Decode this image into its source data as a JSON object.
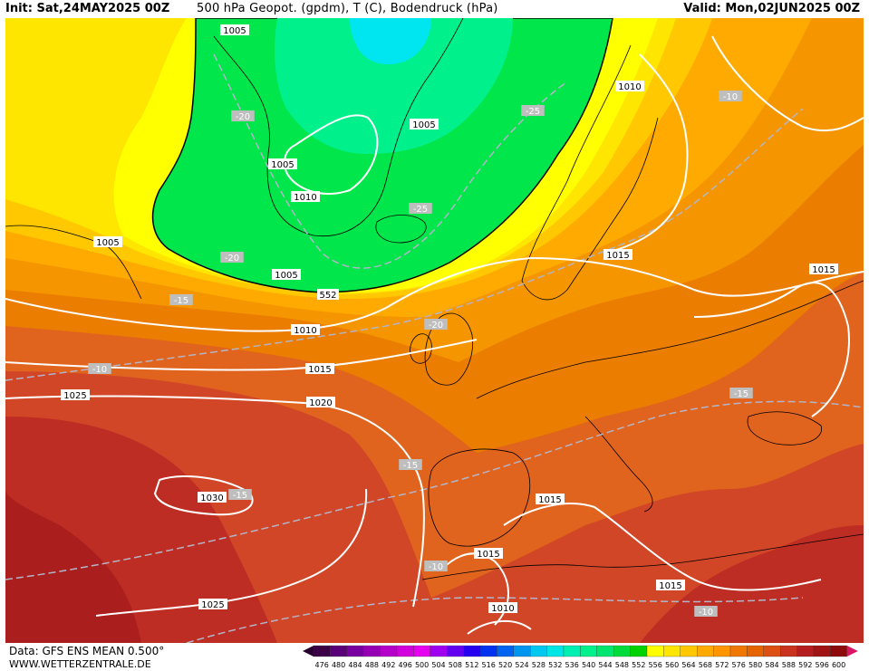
{
  "header": {
    "init": "Init: Sat,24MAY2025 00Z",
    "title": "500 hPa Geopot. (gpdm), T (C), Bodendruck (hPa)",
    "valid": "Valid: Mon,02JUN2025 00Z"
  },
  "footer": {
    "data": "Data: GFS ENS MEAN 0.500°",
    "site": "WWW.WETTERZENTRALE.DE"
  },
  "legend": {
    "values": [
      "476",
      "480",
      "484",
      "488",
      "492",
      "496",
      "500",
      "504",
      "508",
      "512",
      "516",
      "520",
      "524",
      "528",
      "532",
      "536",
      "540",
      "544",
      "548",
      "552",
      "556",
      "560",
      "564",
      "568",
      "572",
      "576",
      "580",
      "584",
      "588",
      "592",
      "596",
      "600"
    ],
    "colors": [
      "#3c0046",
      "#5a0078",
      "#7800a0",
      "#9600b4",
      "#b400c8",
      "#d200dc",
      "#e600f0",
      "#a000f0",
      "#6400f0",
      "#2800f0",
      "#0032f0",
      "#0064f0",
      "#0096f0",
      "#00c8f0",
      "#00e6e6",
      "#00f0b4",
      "#00f08c",
      "#00e66e",
      "#00dc3c",
      "#00d200",
      "#ffff00",
      "#ffe600",
      "#ffc800",
      "#ffaa00",
      "#ff9600",
      "#f07800",
      "#e66400",
      "#dc5014",
      "#c8321e",
      "#b41e1e",
      "#a01414",
      "#8c0a0a"
    ],
    "start_arrow": "#2a0030",
    "end_arrow": "#dc1464"
  },
  "fields": {
    "geopotential_contour": "552",
    "pressure_labels": [
      "1005",
      "1005",
      "1005",
      "1010",
      "1005",
      "1010",
      "1005",
      "1015",
      "1015",
      "1010",
      "1015",
      "1020",
      "1025",
      "1030",
      "1015",
      "1015",
      "1010",
      "1015",
      "1025"
    ],
    "temperature_labels": [
      "-20",
      "-25",
      "-25",
      "-20",
      "-15",
      "-20",
      "-10",
      "-10",
      "-15",
      "-15",
      "-15",
      "-10",
      "-10",
      "-10"
    ]
  },
  "colors": {
    "green": "#00e64b",
    "green_dark": "#00c832",
    "yellow": "#ffff00",
    "yellow2": "#ffe600",
    "orange1": "#ffc800",
    "orange2": "#ffaa00",
    "orange3": "#f59600",
    "orange4": "#eb7d00",
    "red1": "#e1641e",
    "red2": "#d24628",
    "red3": "#be2d23",
    "red4": "#aa1e1e",
    "cyan": "#00e6f0"
  }
}
